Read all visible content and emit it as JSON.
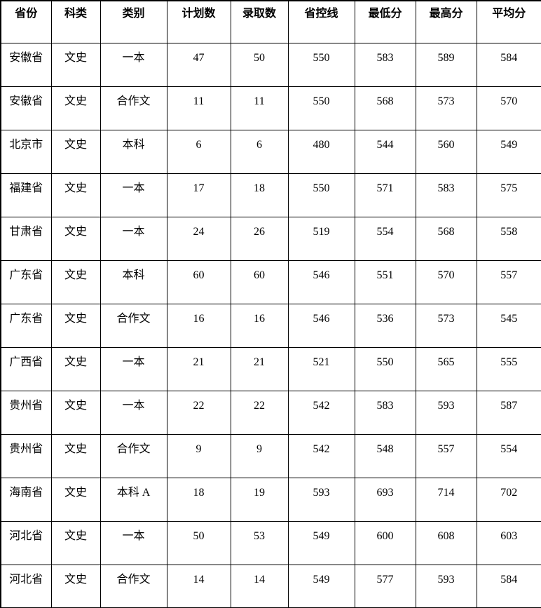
{
  "table": {
    "columns": [
      {
        "key": "province",
        "label": "省份"
      },
      {
        "key": "subject-type",
        "label": "科类"
      },
      {
        "key": "category",
        "label": "类别"
      },
      {
        "key": "planned-count",
        "label": "计划数"
      },
      {
        "key": "admitted-count",
        "label": "录取数"
      },
      {
        "key": "control-line",
        "label": "省控线"
      },
      {
        "key": "min-score",
        "label": "最低分"
      },
      {
        "key": "max-score",
        "label": "最高分"
      },
      {
        "key": "avg-score",
        "label": "平均分"
      }
    ],
    "rows": [
      [
        "安徽省",
        "文史",
        "一本",
        "47",
        "50",
        "550",
        "583",
        "589",
        "584"
      ],
      [
        "安徽省",
        "文史",
        "合作文",
        "11",
        "11",
        "550",
        "568",
        "573",
        "570"
      ],
      [
        "北京市",
        "文史",
        "本科",
        "6",
        "6",
        "480",
        "544",
        "560",
        "549"
      ],
      [
        "福建省",
        "文史",
        "一本",
        "17",
        "18",
        "550",
        "571",
        "583",
        "575"
      ],
      [
        "甘肃省",
        "文史",
        "一本",
        "24",
        "26",
        "519",
        "554",
        "568",
        "558"
      ],
      [
        "广东省",
        "文史",
        "本科",
        "60",
        "60",
        "546",
        "551",
        "570",
        "557"
      ],
      [
        "广东省",
        "文史",
        "合作文",
        "16",
        "16",
        "546",
        "536",
        "573",
        "545"
      ],
      [
        "广西省",
        "文史",
        "一本",
        "21",
        "21",
        "521",
        "550",
        "565",
        "555"
      ],
      [
        "贵州省",
        "文史",
        "一本",
        "22",
        "22",
        "542",
        "583",
        "593",
        "587"
      ],
      [
        "贵州省",
        "文史",
        "合作文",
        "9",
        "9",
        "542",
        "548",
        "557",
        "554"
      ],
      [
        "海南省",
        "文史",
        "本科 A",
        "18",
        "19",
        "593",
        "693",
        "714",
        "702"
      ],
      [
        "河北省",
        "文史",
        "一本",
        "50",
        "53",
        "549",
        "600",
        "608",
        "603"
      ],
      [
        "河北省",
        "文史",
        "合作文",
        "14",
        "14",
        "549",
        "577",
        "593",
        "584"
      ]
    ]
  },
  "colors": {
    "text": "#000000",
    "border": "#000000",
    "background": "#ffffff"
  }
}
